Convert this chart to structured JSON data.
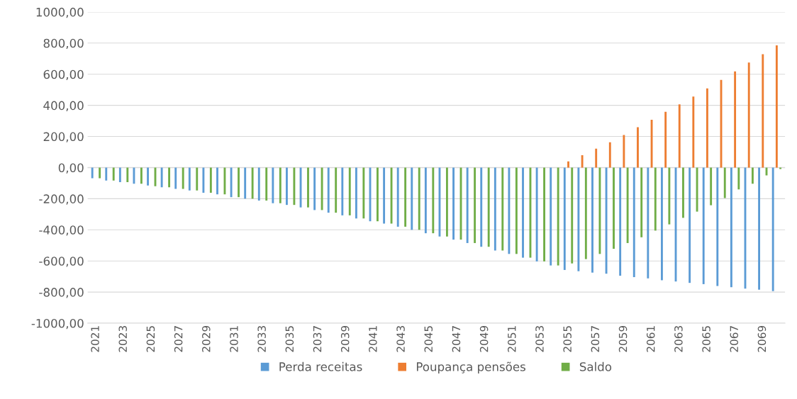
{
  "chart_data": {
    "type": "bar",
    "categories": [
      "2021",
      null,
      "2023",
      null,
      "2025",
      null,
      "2027",
      null,
      "2029",
      null,
      "2031",
      null,
      "2033",
      null,
      "2035",
      null,
      "2037",
      null,
      "2039",
      null,
      "2041",
      null,
      "2043",
      null,
      "2045",
      null,
      "2047",
      null,
      "2049",
      null,
      "2051",
      null,
      "2053",
      null,
      "2055",
      null,
      "2057",
      null,
      "2059",
      null,
      "2061",
      null,
      "2063",
      null,
      "2065",
      null,
      "2067",
      null,
      "2069",
      null
    ],
    "series": [
      {
        "name": "Perda receitas",
        "color": "#5b9bd5",
        "values": [
          -68,
          -83,
          -94,
          -104,
          -115,
          -126,
          -137,
          -147,
          -162,
          -172,
          -190,
          -200,
          -212,
          -229,
          -240,
          -256,
          -273,
          -290,
          -307,
          -327,
          -345,
          -360,
          -380,
          -400,
          -422,
          -443,
          -463,
          -485,
          -509,
          -533,
          -555,
          -579,
          -603,
          -629,
          -658,
          -666,
          -675,
          -682,
          -695,
          -704,
          -712,
          -724,
          -732,
          -741,
          -749,
          -761,
          -769,
          -778,
          -785,
          -794
        ]
      },
      {
        "name": "Poupança pensões",
        "color": "#ed7d31",
        "values": [
          0,
          0,
          0,
          0,
          0,
          0,
          0,
          0,
          0,
          0,
          0,
          0,
          0,
          0,
          0,
          0,
          0,
          0,
          0,
          0,
          0,
          0,
          0,
          0,
          0,
          0,
          0,
          0,
          0,
          0,
          0,
          0,
          0,
          0,
          40,
          80,
          122,
          163,
          209,
          259,
          307,
          358,
          406,
          456,
          509,
          563,
          618,
          675,
          728,
          785
        ]
      },
      {
        "name": "Saldo",
        "color": "#70ad47",
        "values": [
          -68,
          -83,
          -94,
          -104,
          -120,
          -126,
          -137,
          -147,
          -162,
          -172,
          -190,
          -200,
          -212,
          -229,
          -240,
          -256,
          -273,
          -290,
          -307,
          -327,
          -345,
          -360,
          -380,
          -400,
          -422,
          -443,
          -463,
          -485,
          -509,
          -533,
          -555,
          -579,
          -603,
          -629,
          -616,
          -588,
          -555,
          -522,
          -485,
          -448,
          -405,
          -365,
          -323,
          -283,
          -242,
          -196,
          -140,
          -104,
          -50,
          -9
        ]
      }
    ],
    "ylim": [
      -1000,
      1000
    ],
    "yticks": [
      {
        "value": -1000,
        "label": "-1000,00"
      },
      {
        "value": -800,
        "label": "-800,00"
      },
      {
        "value": -600,
        "label": "-600,00"
      },
      {
        "value": -400,
        "label": "-400,00"
      },
      {
        "value": -200,
        "label": "-200,00"
      },
      {
        "value": 0,
        "label": "0,00"
      },
      {
        "value": 200,
        "label": "200,00"
      },
      {
        "value": 400,
        "label": "400,00"
      },
      {
        "value": 600,
        "label": "600,00"
      },
      {
        "value": 800,
        "label": "800,00"
      },
      {
        "value": 1000,
        "label": "1000,00"
      }
    ],
    "grid": "y",
    "legend": "bottom"
  }
}
